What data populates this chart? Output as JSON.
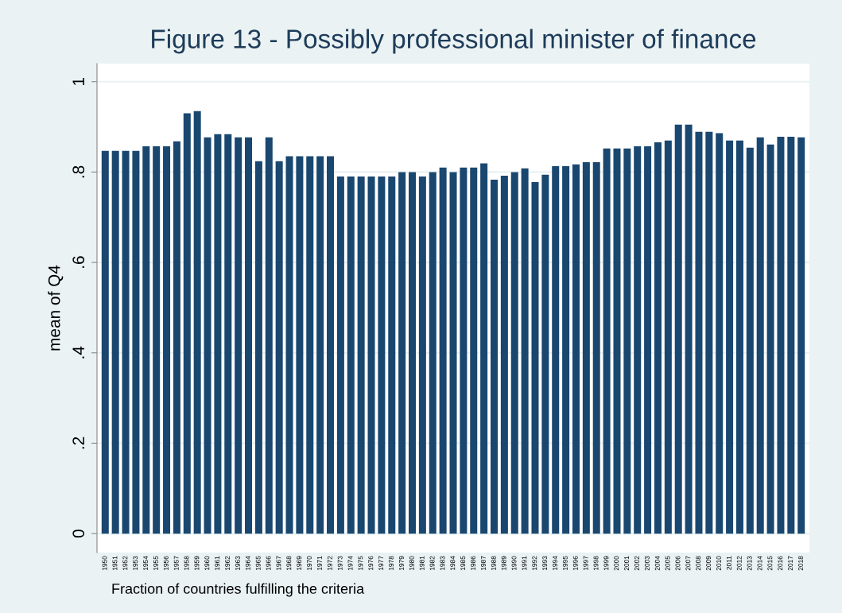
{
  "chart_data": {
    "type": "bar",
    "title": "Figure 13 - Possibly professional minister of finance",
    "ylabel": "mean of Q4",
    "annotations": [
      "Fraction of countries fulfilling the criteria"
    ],
    "categories": [
      "1950",
      "1951",
      "1952",
      "1953",
      "1954",
      "1955",
      "1956",
      "1957",
      "1958",
      "1959",
      "1960",
      "1961",
      "1962",
      "1963",
      "1964",
      "1965",
      "1966",
      "1967",
      "1968",
      "1969",
      "1970",
      "1971",
      "1972",
      "1973",
      "1974",
      "1975",
      "1976",
      "1977",
      "1978",
      "1979",
      "1980",
      "1981",
      "1982",
      "1983",
      "1984",
      "1985",
      "1986",
      "1987",
      "1988",
      "1989",
      "1990",
      "1991",
      "1992",
      "1993",
      "1994",
      "1995",
      "1996",
      "1997",
      "1998",
      "1999",
      "2000",
      "2001",
      "2002",
      "2003",
      "2004",
      "2005",
      "2006",
      "2007",
      "2008",
      "2009",
      "2010",
      "2011",
      "2012",
      "2013",
      "2014",
      "2015",
      "2016",
      "2017",
      "2018"
    ],
    "values": [
      0.847,
      0.847,
      0.847,
      0.847,
      0.857,
      0.857,
      0.857,
      0.868,
      0.93,
      0.935,
      0.877,
      0.884,
      0.884,
      0.877,
      0.877,
      0.824,
      0.877,
      0.824,
      0.835,
      0.835,
      0.835,
      0.835,
      0.835,
      0.79,
      0.79,
      0.79,
      0.79,
      0.79,
      0.79,
      0.8,
      0.8,
      0.79,
      0.8,
      0.81,
      0.8,
      0.81,
      0.81,
      0.819,
      0.783,
      0.792,
      0.8,
      0.808,
      0.778,
      0.794,
      0.813,
      0.813,
      0.817,
      0.822,
      0.822,
      0.852,
      0.852,
      0.852,
      0.857,
      0.857,
      0.866,
      0.87,
      0.905,
      0.905,
      0.889,
      0.889,
      0.886,
      0.87,
      0.87,
      0.854,
      0.877,
      0.861,
      0.878,
      0.878,
      0.877
    ],
    "color": "#1a476f",
    "ylim": [
      -0.042,
      1.04
    ],
    "yticks": [
      {
        "value": 0,
        "label": "0"
      },
      {
        "value": 0.2,
        "label": ".2"
      },
      {
        "value": 0.4,
        "label": ".4"
      },
      {
        "value": 0.6,
        "label": ".6"
      },
      {
        "value": 0.8,
        "label": ".8"
      },
      {
        "value": 1,
        "label": "1"
      }
    ],
    "grid": "y",
    "legend": false
  }
}
